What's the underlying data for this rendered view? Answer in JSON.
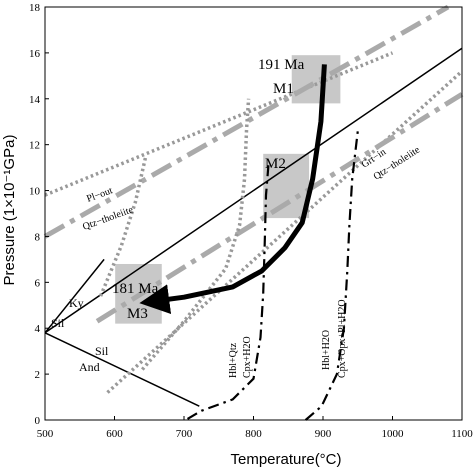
{
  "chart_data": {
    "type": "line",
    "title": "",
    "xlabel": "Temperature(°C)",
    "ylabel": "Pressure (1×10⁻¹GPa)",
    "xlim": [
      500,
      1100
    ],
    "ylim": [
      0,
      18
    ],
    "xticks": [
      500,
      600,
      700,
      800,
      900,
      1000,
      1100
    ],
    "yticks": [
      0,
      2,
      4,
      6,
      8,
      10,
      12,
      14,
      16,
      18
    ],
    "grid": false,
    "colors": {
      "dotted_gray": "#999999",
      "dashdot_gray": "#aaaaaa",
      "box_fill": "#c8c8c8",
      "black": "#000000"
    },
    "series": [
      {
        "style": "solid",
        "points": [
          [
            500,
            3.8
          ],
          [
            1100,
            16.2
          ]
        ]
      },
      {
        "style": "solid",
        "points": [
          [
            500,
            3.8
          ],
          [
            585,
            7.0
          ]
        ]
      },
      {
        "style": "solid",
        "points": [
          [
            500,
            3.8
          ],
          [
            722,
            0.6
          ]
        ]
      },
      {
        "style": "dotted-gray",
        "points": [
          [
            500,
            9.8
          ],
          [
            1000,
            16.0
          ]
        ]
      },
      {
        "style": "dotted-gray",
        "points": [
          [
            590,
            1.2
          ],
          [
            1100,
            15.2
          ]
        ]
      },
      {
        "style": "dashdot-gray",
        "points": [
          [
            500,
            8.0
          ],
          [
            1080,
            18.0
          ]
        ]
      },
      {
        "style": "dashdot-gray",
        "points": [
          [
            575,
            4.3
          ],
          [
            1100,
            14.2
          ]
        ]
      },
      {
        "style": "dotted-gray",
        "points": [
          [
            580,
            5.4
          ],
          [
            610,
            7.6
          ],
          [
            630,
            9.5
          ],
          [
            645,
            11.5
          ]
        ]
      },
      {
        "style": "dotted-gray",
        "points": [
          [
            640,
            2.2
          ],
          [
            700,
            4.3
          ],
          [
            760,
            6.6
          ],
          [
            780,
            8.5
          ],
          [
            787,
            10.5
          ],
          [
            790,
            12.7
          ],
          [
            793,
            14.0
          ]
        ]
      },
      {
        "style": "dashdot-black",
        "points": [
          [
            705,
            0.05
          ],
          [
            725,
            0.4
          ],
          [
            770,
            0.9
          ],
          [
            800,
            1.8
          ],
          [
            810,
            3.6
          ],
          [
            814,
            5.5
          ],
          [
            816,
            7.5
          ],
          [
            818,
            9.8
          ],
          [
            822,
            11.3
          ]
        ]
      },
      {
        "style": "dashdot-black",
        "points": [
          [
            875,
            0.0
          ],
          [
            898,
            0.6
          ],
          [
            920,
            2.0
          ],
          [
            930,
            4.0
          ],
          [
            935,
            6.5
          ],
          [
            938,
            8.5
          ],
          [
            942,
            10.5
          ],
          [
            950,
            12.6
          ]
        ]
      }
    ],
    "path": {
      "points": [
        [
          902,
          15.5
        ],
        [
          897,
          13.0
        ],
        [
          885,
          10.5
        ],
        [
          870,
          8.6
        ],
        [
          845,
          7.5
        ],
        [
          812,
          6.5
        ],
        [
          770,
          5.8
        ],
        [
          700,
          5.35
        ],
        [
          650,
          5.15
        ]
      ]
    },
    "boxes": [
      {
        "x": [
          855,
          925
        ],
        "y": [
          13.8,
          15.9
        ]
      },
      {
        "x": [
          814,
          880
        ],
        "y": [
          8.8,
          11.6
        ]
      },
      {
        "x": [
          601,
          668
        ],
        "y": [
          4.2,
          6.8
        ]
      }
    ],
    "annotations": {
      "age_m1": "191 Ma",
      "label_m1": "M1",
      "label_m2": "M2",
      "age_m3": "181 Ma",
      "label_m3": "M3",
      "ky": "Ky",
      "sil_upper": "Sil",
      "sil_lower": "Sil",
      "and": "And",
      "pl_out": "Pl−out",
      "qtz_tholeiite_left": "Qtz−tholeiite",
      "grt_in": "Grt−in",
      "qtz_tholeiite_right": "Qtz−tholeiite",
      "hbl_qtz": "Hbl+Qtz",
      "cpx_h2o": "Cpx+H2O",
      "hbl_h2o": "Hbl+H2O",
      "cpx_opx": "Cpx+Opx+Pl+H2O"
    }
  }
}
